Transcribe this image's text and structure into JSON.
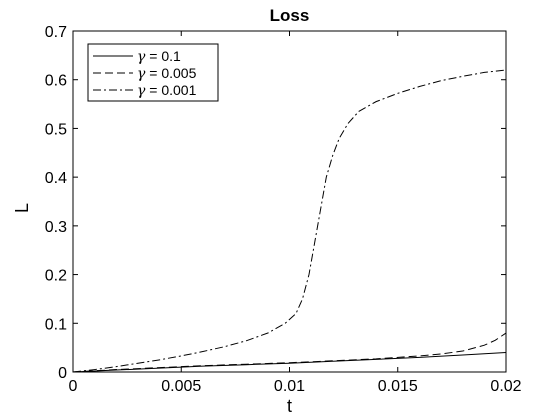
{
  "chart_data": {
    "type": "line",
    "title": "Loss",
    "xlabel": "t",
    "ylabel": "L",
    "xlim": [
      0,
      0.02
    ],
    "ylim": [
      0,
      0.7
    ],
    "xticks": [
      "0",
      "0.005",
      "0.01",
      "0.015",
      "0.02"
    ],
    "yticks": [
      "0",
      "0.1",
      "0.2",
      "0.3",
      "0.4",
      "0.5",
      "0.6",
      "0.7"
    ],
    "grid": false,
    "legend_position": "top-left",
    "legend_symbol": "γ",
    "series": [
      {
        "name": "= 0.1",
        "style": "solid",
        "points": [
          [
            0,
            0
          ],
          [
            0.002,
            0.004
          ],
          [
            0.004,
            0.008
          ],
          [
            0.006,
            0.012
          ],
          [
            0.008,
            0.015
          ],
          [
            0.01,
            0.018
          ],
          [
            0.012,
            0.022
          ],
          [
            0.014,
            0.026
          ],
          [
            0.016,
            0.03
          ],
          [
            0.018,
            0.035
          ],
          [
            0.02,
            0.04
          ]
        ]
      },
      {
        "name": "= 0.005",
        "style": "dashed",
        "points": [
          [
            0,
            0
          ],
          [
            0.002,
            0.005
          ],
          [
            0.004,
            0.009
          ],
          [
            0.006,
            0.013
          ],
          [
            0.008,
            0.016
          ],
          [
            0.01,
            0.019
          ],
          [
            0.012,
            0.023
          ],
          [
            0.014,
            0.027
          ],
          [
            0.016,
            0.033
          ],
          [
            0.017,
            0.037
          ],
          [
            0.018,
            0.043
          ],
          [
            0.019,
            0.055
          ],
          [
            0.0195,
            0.065
          ],
          [
            0.02,
            0.08
          ]
        ]
      },
      {
        "name": "= 0.001",
        "style": "dashdot",
        "points": [
          [
            0,
            0
          ],
          [
            0.001,
            0.005
          ],
          [
            0.002,
            0.011
          ],
          [
            0.003,
            0.018
          ],
          [
            0.004,
            0.025
          ],
          [
            0.005,
            0.033
          ],
          [
            0.006,
            0.042
          ],
          [
            0.007,
            0.052
          ],
          [
            0.008,
            0.064
          ],
          [
            0.009,
            0.08
          ],
          [
            0.0098,
            0.1
          ],
          [
            0.0103,
            0.12
          ],
          [
            0.0106,
            0.15
          ],
          [
            0.0109,
            0.2
          ],
          [
            0.0111,
            0.25
          ],
          [
            0.0113,
            0.3
          ],
          [
            0.0115,
            0.35
          ],
          [
            0.0117,
            0.4
          ],
          [
            0.012,
            0.445
          ],
          [
            0.0123,
            0.48
          ],
          [
            0.0127,
            0.51
          ],
          [
            0.0132,
            0.535
          ],
          [
            0.014,
            0.555
          ],
          [
            0.015,
            0.572
          ],
          [
            0.016,
            0.586
          ],
          [
            0.017,
            0.598
          ],
          [
            0.018,
            0.607
          ],
          [
            0.019,
            0.615
          ],
          [
            0.02,
            0.62
          ]
        ]
      }
    ]
  }
}
